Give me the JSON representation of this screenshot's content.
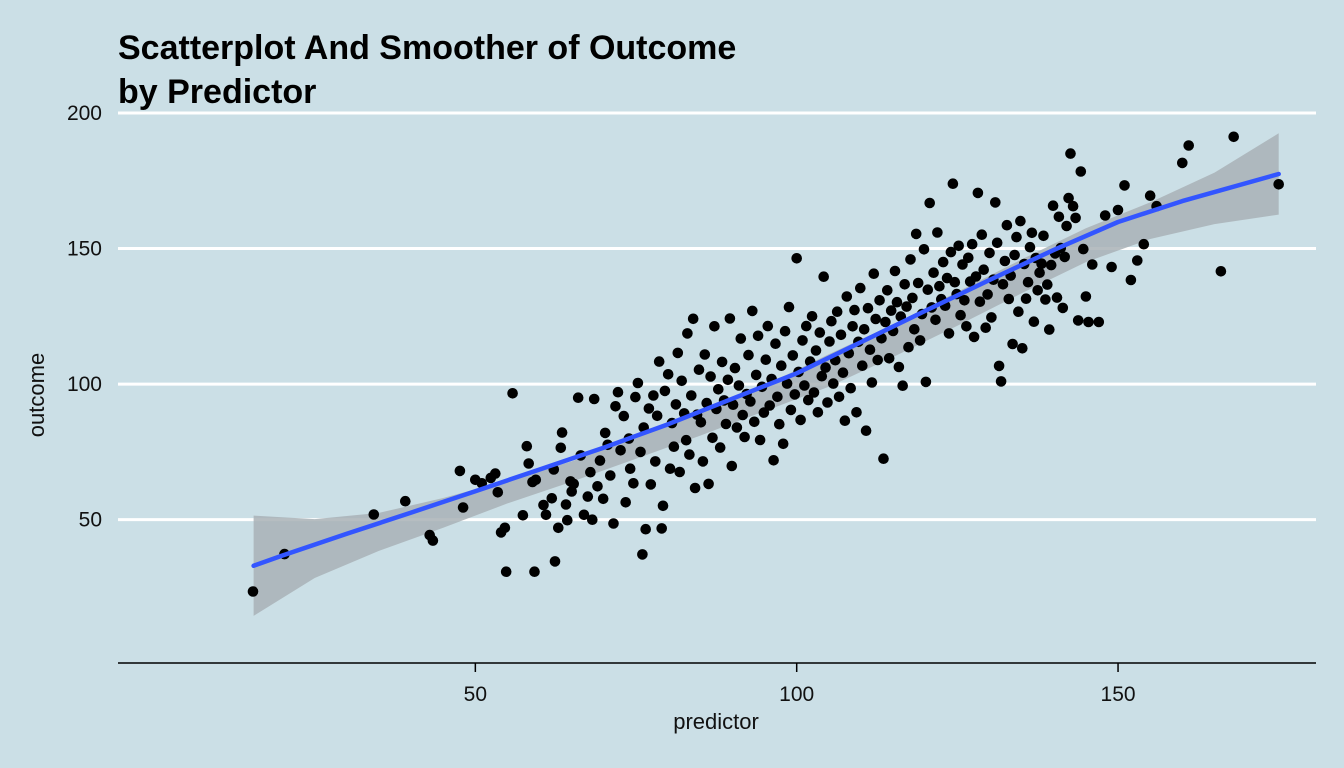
{
  "chart_data": {
    "type": "scatter",
    "title_lines": [
      "Scatterplot And Smoother of Outcome",
      "by Predictor"
    ],
    "xlabel": "predictor",
    "ylabel": "outcome",
    "xlim": [
      12,
      180
    ],
    "ylim": [
      7,
      200
    ],
    "x_ticks": [
      50,
      100,
      150
    ],
    "y_ticks": [
      50,
      100,
      150,
      200
    ],
    "grid": "horizontal major lines",
    "colors": {
      "background": "#cbdfe6",
      "points": "#000000",
      "smoother": "#3355ff",
      "band": "#a9b1b6",
      "grid": "#ffffff"
    },
    "points": [
      [
        15.4,
        23.5
      ],
      [
        20.3,
        37.3
      ],
      [
        34.2,
        51.9
      ],
      [
        39.1,
        56.8
      ],
      [
        42.9,
        44.3
      ],
      [
        43.4,
        42.3
      ],
      [
        47.6,
        68.0
      ],
      [
        48.1,
        54.5
      ],
      [
        50.0,
        64.7
      ],
      [
        51.0,
        63.4
      ],
      [
        52.4,
        65.4
      ],
      [
        53.1,
        67.0
      ],
      [
        53.5,
        60.1
      ],
      [
        54.0,
        45.3
      ],
      [
        54.6,
        47.0
      ],
      [
        54.8,
        30.8
      ],
      [
        55.8,
        96.6
      ],
      [
        57.4,
        51.6
      ],
      [
        58.0,
        77.1
      ],
      [
        58.3,
        70.7
      ],
      [
        58.9,
        63.9
      ],
      [
        59.2,
        30.8
      ],
      [
        59.4,
        64.7
      ],
      [
        60.6,
        55.4
      ],
      [
        61.0,
        51.8
      ],
      [
        61.9,
        57.9
      ],
      [
        62.2,
        68.5
      ],
      [
        62.4,
        34.6
      ],
      [
        62.9,
        47.0
      ],
      [
        63.3,
        76.5
      ],
      [
        63.5,
        82.1
      ],
      [
        64.1,
        55.6
      ],
      [
        64.3,
        49.8
      ],
      [
        64.8,
        64.1
      ],
      [
        65.0,
        60.4
      ],
      [
        65.3,
        63.2
      ],
      [
        66.0,
        95.0
      ],
      [
        66.4,
        73.7
      ],
      [
        66.9,
        51.8
      ],
      [
        67.5,
        58.5
      ],
      [
        67.9,
        67.5
      ],
      [
        68.2,
        50.0
      ],
      [
        68.5,
        94.5
      ],
      [
        69.0,
        62.3
      ],
      [
        69.4,
        71.8
      ],
      [
        69.9,
        57.7
      ],
      [
        70.2,
        82.0
      ],
      [
        70.6,
        77.6
      ],
      [
        71.0,
        66.3
      ],
      [
        71.5,
        48.6
      ],
      [
        71.8,
        91.8
      ],
      [
        72.2,
        97.0
      ],
      [
        72.6,
        75.6
      ],
      [
        73.1,
        88.2
      ],
      [
        73.4,
        56.4
      ],
      [
        73.9,
        79.9
      ],
      [
        74.1,
        68.8
      ],
      [
        74.6,
        63.4
      ],
      [
        74.9,
        95.2
      ],
      [
        75.3,
        100.4
      ],
      [
        75.7,
        75.0
      ],
      [
        76.0,
        37.2
      ],
      [
        76.2,
        84.0
      ],
      [
        76.5,
        46.5
      ],
      [
        77.0,
        91.0
      ],
      [
        77.3,
        63.0
      ],
      [
        77.7,
        95.8
      ],
      [
        78.0,
        71.5
      ],
      [
        78.3,
        88.3
      ],
      [
        78.6,
        108.3
      ],
      [
        79.0,
        46.8
      ],
      [
        79.2,
        55.1
      ],
      [
        79.5,
        97.5
      ],
      [
        80.0,
        103.6
      ],
      [
        80.3,
        68.8
      ],
      [
        80.6,
        85.6
      ],
      [
        80.9,
        76.9
      ],
      [
        81.2,
        92.5
      ],
      [
        81.5,
        111.5
      ],
      [
        81.8,
        67.6
      ],
      [
        82.1,
        101.2
      ],
      [
        82.5,
        89.2
      ],
      [
        82.8,
        79.3
      ],
      [
        83.0,
        118.7
      ],
      [
        83.3,
        74.0
      ],
      [
        83.6,
        95.8
      ],
      [
        83.9,
        124.1
      ],
      [
        84.2,
        61.7
      ],
      [
        84.5,
        88.7
      ],
      [
        84.8,
        105.3
      ],
      [
        85.1,
        85.9
      ],
      [
        85.4,
        71.5
      ],
      [
        85.7,
        110.9
      ],
      [
        86.0,
        93.0
      ],
      [
        86.3,
        63.2
      ],
      [
        86.6,
        102.8
      ],
      [
        86.9,
        80.2
      ],
      [
        87.2,
        121.3
      ],
      [
        87.5,
        90.8
      ],
      [
        87.8,
        98.1
      ],
      [
        88.1,
        76.6
      ],
      [
        88.4,
        108.2
      ],
      [
        88.7,
        94.0
      ],
      [
        89.0,
        85.3
      ],
      [
        89.3,
        101.6
      ],
      [
        89.6,
        124.2
      ],
      [
        89.9,
        69.8
      ],
      [
        90.1,
        92.4
      ],
      [
        90.4,
        105.9
      ],
      [
        90.7,
        84.0
      ],
      [
        91.0,
        99.5
      ],
      [
        91.3,
        116.8
      ],
      [
        91.6,
        88.6
      ],
      [
        91.9,
        80.5
      ],
      [
        92.2,
        96.3
      ],
      [
        92.5,
        110.7
      ],
      [
        92.8,
        93.6
      ],
      [
        93.1,
        127.0
      ],
      [
        93.4,
        86.1
      ],
      [
        93.7,
        103.4
      ],
      [
        94.0,
        117.8
      ],
      [
        94.3,
        79.4
      ],
      [
        94.6,
        99.0
      ],
      [
        94.9,
        89.5
      ],
      [
        95.2,
        109.0
      ],
      [
        95.5,
        121.4
      ],
      [
        95.8,
        92.1
      ],
      [
        96.1,
        101.9
      ],
      [
        96.4,
        71.9
      ],
      [
        96.7,
        114.9
      ],
      [
        97.0,
        95.3
      ],
      [
        97.3,
        85.2
      ],
      [
        97.6,
        106.8
      ],
      [
        97.9,
        78.0
      ],
      [
        98.2,
        119.5
      ],
      [
        98.5,
        100.2
      ],
      [
        98.8,
        128.4
      ],
      [
        99.1,
        90.5
      ],
      [
        99.4,
        110.6
      ],
      [
        99.7,
        96.2
      ],
      [
        100.0,
        146.4
      ],
      [
        100.3,
        104.5
      ],
      [
        100.6,
        86.8
      ],
      [
        100.9,
        116.1
      ],
      [
        101.2,
        99.5
      ],
      [
        101.5,
        121.4
      ],
      [
        101.8,
        94.1
      ],
      [
        102.1,
        108.3
      ],
      [
        102.4,
        125.0
      ],
      [
        102.7,
        96.9
      ],
      [
        103.0,
        112.4
      ],
      [
        103.3,
        89.6
      ],
      [
        103.6,
        119.0
      ],
      [
        103.9,
        102.9
      ],
      [
        104.2,
        139.6
      ],
      [
        104.5,
        106.1
      ],
      [
        104.8,
        93.2
      ],
      [
        105.1,
        115.7
      ],
      [
        105.4,
        123.2
      ],
      [
        105.7,
        100.2
      ],
      [
        106.0,
        108.8
      ],
      [
        106.3,
        126.7
      ],
      [
        106.6,
        95.3
      ],
      [
        106.9,
        118.2
      ],
      [
        107.2,
        104.2
      ],
      [
        107.5,
        86.5
      ],
      [
        107.8,
        132.3
      ],
      [
        108.1,
        111.4
      ],
      [
        108.4,
        98.5
      ],
      [
        108.7,
        121.3
      ],
      [
        109.0,
        127.3
      ],
      [
        109.3,
        89.6
      ],
      [
        109.6,
        115.6
      ],
      [
        109.9,
        135.4
      ],
      [
        110.2,
        106.8
      ],
      [
        110.5,
        120.2
      ],
      [
        110.8,
        82.8
      ],
      [
        111.1,
        128.0
      ],
      [
        111.4,
        112.7
      ],
      [
        111.7,
        100.6
      ],
      [
        112.0,
        140.7
      ],
      [
        112.3,
        124.0
      ],
      [
        112.6,
        108.9
      ],
      [
        112.9,
        130.9
      ],
      [
        113.2,
        116.9
      ],
      [
        113.5,
        72.5
      ],
      [
        113.8,
        122.9
      ],
      [
        114.1,
        134.6
      ],
      [
        114.4,
        109.5
      ],
      [
        114.7,
        127.1
      ],
      [
        115.0,
        119.6
      ],
      [
        115.3,
        141.7
      ],
      [
        115.6,
        130.2
      ],
      [
        115.9,
        106.3
      ],
      [
        116.2,
        124.9
      ],
      [
        116.5,
        99.4
      ],
      [
        116.8,
        136.8
      ],
      [
        117.1,
        128.6
      ],
      [
        117.4,
        113.6
      ],
      [
        117.7,
        146.0
      ],
      [
        118.0,
        131.8
      ],
      [
        118.3,
        120.2
      ],
      [
        118.6,
        155.4
      ],
      [
        118.9,
        137.3
      ],
      [
        119.2,
        116.1
      ],
      [
        119.5,
        125.8
      ],
      [
        119.8,
        149.7
      ],
      [
        120.1,
        100.8
      ],
      [
        120.4,
        134.8
      ],
      [
        120.7,
        166.8
      ],
      [
        121.0,
        128.3
      ],
      [
        121.3,
        141.1
      ],
      [
        121.6,
        123.7
      ],
      [
        121.9,
        155.9
      ],
      [
        122.2,
        136.1
      ],
      [
        122.5,
        131.3
      ],
      [
        122.8,
        145.0
      ],
      [
        123.1,
        128.9
      ],
      [
        123.4,
        139.1
      ],
      [
        123.7,
        118.7
      ],
      [
        124.0,
        148.7
      ],
      [
        124.3,
        173.9
      ],
      [
        124.6,
        137.6
      ],
      [
        124.9,
        133.2
      ],
      [
        125.2,
        151.0
      ],
      [
        125.5,
        125.4
      ],
      [
        125.8,
        144.1
      ],
      [
        126.1,
        130.9
      ],
      [
        126.4,
        121.3
      ],
      [
        126.7,
        146.6
      ],
      [
        127.0,
        137.8
      ],
      [
        127.3,
        151.6
      ],
      [
        127.6,
        117.4
      ],
      [
        127.9,
        139.7
      ],
      [
        128.2,
        170.5
      ],
      [
        128.5,
        130.4
      ],
      [
        128.8,
        155.1
      ],
      [
        129.1,
        142.2
      ],
      [
        129.4,
        120.8
      ],
      [
        129.7,
        133.1
      ],
      [
        130.0,
        148.4
      ],
      [
        130.3,
        124.6
      ],
      [
        130.6,
        138.5
      ],
      [
        130.9,
        167.0
      ],
      [
        131.2,
        152.1
      ],
      [
        131.5,
        106.7
      ],
      [
        131.8,
        101.0
      ],
      [
        132.1,
        136.8
      ],
      [
        132.4,
        145.4
      ],
      [
        132.7,
        158.6
      ],
      [
        133.0,
        131.4
      ],
      [
        133.3,
        140.0
      ],
      [
        133.6,
        114.8
      ],
      [
        133.9,
        147.6
      ],
      [
        134.2,
        154.2
      ],
      [
        134.5,
        126.7
      ],
      [
        134.8,
        160.1
      ],
      [
        135.1,
        113.2
      ],
      [
        135.4,
        144.3
      ],
      [
        135.7,
        131.5
      ],
      [
        136.0,
        137.6
      ],
      [
        136.3,
        150.5
      ],
      [
        136.6,
        155.8
      ],
      [
        136.9,
        123.0
      ],
      [
        137.2,
        146.5
      ],
      [
        137.5,
        134.6
      ],
      [
        137.8,
        141.1
      ],
      [
        138.1,
        144.4
      ],
      [
        138.4,
        154.7
      ],
      [
        138.7,
        131.2
      ],
      [
        139.0,
        136.7
      ],
      [
        139.3,
        120.1
      ],
      [
        139.6,
        143.9
      ],
      [
        139.9,
        165.8
      ],
      [
        140.2,
        148.2
      ],
      [
        140.5,
        131.9
      ],
      [
        140.8,
        161.7
      ],
      [
        141.1,
        150.2
      ],
      [
        141.4,
        128.1
      ],
      [
        141.7,
        146.9
      ],
      [
        142.0,
        158.3
      ],
      [
        142.3,
        168.6
      ],
      [
        142.6,
        185.0
      ],
      [
        143.0,
        165.6
      ],
      [
        143.4,
        161.3
      ],
      [
        143.8,
        123.5
      ],
      [
        144.2,
        178.4
      ],
      [
        144.6,
        149.8
      ],
      [
        145.0,
        132.3
      ],
      [
        145.4,
        122.9
      ],
      [
        146.0,
        144.1
      ],
      [
        147.0,
        122.9
      ],
      [
        148.0,
        162.2
      ],
      [
        149.0,
        143.2
      ],
      [
        150.0,
        164.2
      ],
      [
        151.0,
        173.3
      ],
      [
        152.0,
        138.4
      ],
      [
        153.0,
        145.6
      ],
      [
        154.0,
        151.6
      ],
      [
        155.0,
        169.5
      ],
      [
        156.0,
        165.6
      ],
      [
        160.0,
        181.6
      ],
      [
        161.0,
        188.0
      ],
      [
        166.0,
        141.6
      ],
      [
        168.0,
        191.2
      ],
      [
        175.0,
        173.7
      ]
    ],
    "smoother": [
      [
        15.5,
        33.0
      ],
      [
        20,
        36.8
      ],
      [
        30,
        44.8
      ],
      [
        40,
        52.6
      ],
      [
        50,
        60.5
      ],
      [
        60,
        68.5
      ],
      [
        70,
        76.6
      ],
      [
        80,
        85.2
      ],
      [
        90,
        94.6
      ],
      [
        100,
        104.0
      ],
      [
        110,
        115.5
      ],
      [
        120,
        127.0
      ],
      [
        130,
        138.4
      ],
      [
        140,
        149.5
      ],
      [
        150,
        159.8
      ],
      [
        160,
        167.5
      ],
      [
        175,
        177.5
      ]
    ],
    "band": {
      "upper": [
        [
          15.5,
          51.5
        ],
        [
          25,
          50.2
        ],
        [
          35,
          52.5
        ],
        [
          45,
          58.0
        ],
        [
          55,
          64.5
        ],
        [
          65,
          71.5
        ],
        [
          75,
          80.0
        ],
        [
          85,
          89.5
        ],
        [
          95,
          99.5
        ],
        [
          105,
          111.0
        ],
        [
          115,
          122.0
        ],
        [
          125,
          134.0
        ],
        [
          135,
          146.0
        ],
        [
          145,
          157.5
        ],
        [
          155,
          167.0
        ],
        [
          165,
          178.0
        ],
        [
          175,
          192.5
        ]
      ],
      "lower": [
        [
          15.5,
          14.5
        ],
        [
          25,
          28.5
        ],
        [
          35,
          38.5
        ],
        [
          45,
          47.0
        ],
        [
          55,
          56.0
        ],
        [
          65,
          64.0
        ],
        [
          75,
          72.5
        ],
        [
          85,
          81.0
        ],
        [
          95,
          90.0
        ],
        [
          105,
          99.0
        ],
        [
          115,
          110.0
        ],
        [
          125,
          121.5
        ],
        [
          135,
          133.5
        ],
        [
          145,
          145.0
        ],
        [
          155,
          153.5
        ],
        [
          165,
          159.0
        ],
        [
          175,
          162.5
        ]
      ]
    }
  }
}
